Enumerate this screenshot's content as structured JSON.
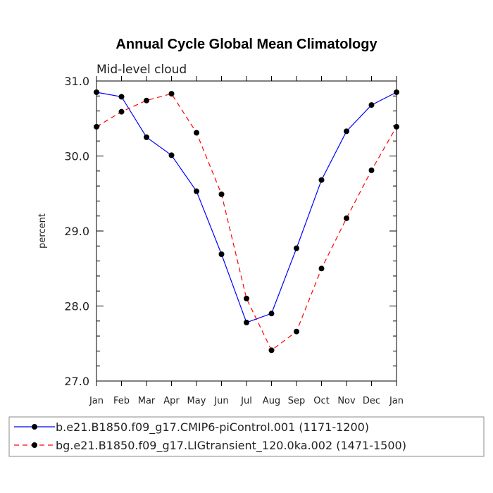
{
  "chart_data": {
    "type": "line",
    "title": "Annual Cycle Global Mean Climatology",
    "subtitle": "Mid-level cloud",
    "xlabel": "",
    "ylabel": "percent",
    "ylim": [
      27.0,
      31.0
    ],
    "yticks": [
      "27.0",
      "28.0",
      "29.0",
      "30.0",
      "31.0"
    ],
    "categories": [
      "Jan",
      "Feb",
      "Mar",
      "Apr",
      "May",
      "Jun",
      "Jul",
      "Aug",
      "Sep",
      "Oct",
      "Nov",
      "Dec",
      "Jan"
    ],
    "series": [
      {
        "name": "b.e21.B1850.f09_g17.CMIP6-piControl.001 (1171-1200)",
        "color": "#0000ff",
        "dash": "solid",
        "values": [
          30.85,
          30.79,
          30.25,
          30.01,
          29.53,
          28.69,
          27.78,
          27.9,
          28.77,
          29.68,
          30.33,
          30.68,
          30.85
        ]
      },
      {
        "name": "bg.e21.B1850.f09_g17.LIGtransient_120.0ka.002 (1471-1500)",
        "color": "#ff0000",
        "dash": "dashed",
        "values": [
          30.39,
          30.59,
          30.74,
          30.83,
          30.31,
          29.49,
          28.1,
          27.41,
          27.66,
          28.5,
          29.17,
          29.81,
          30.39
        ]
      }
    ]
  }
}
